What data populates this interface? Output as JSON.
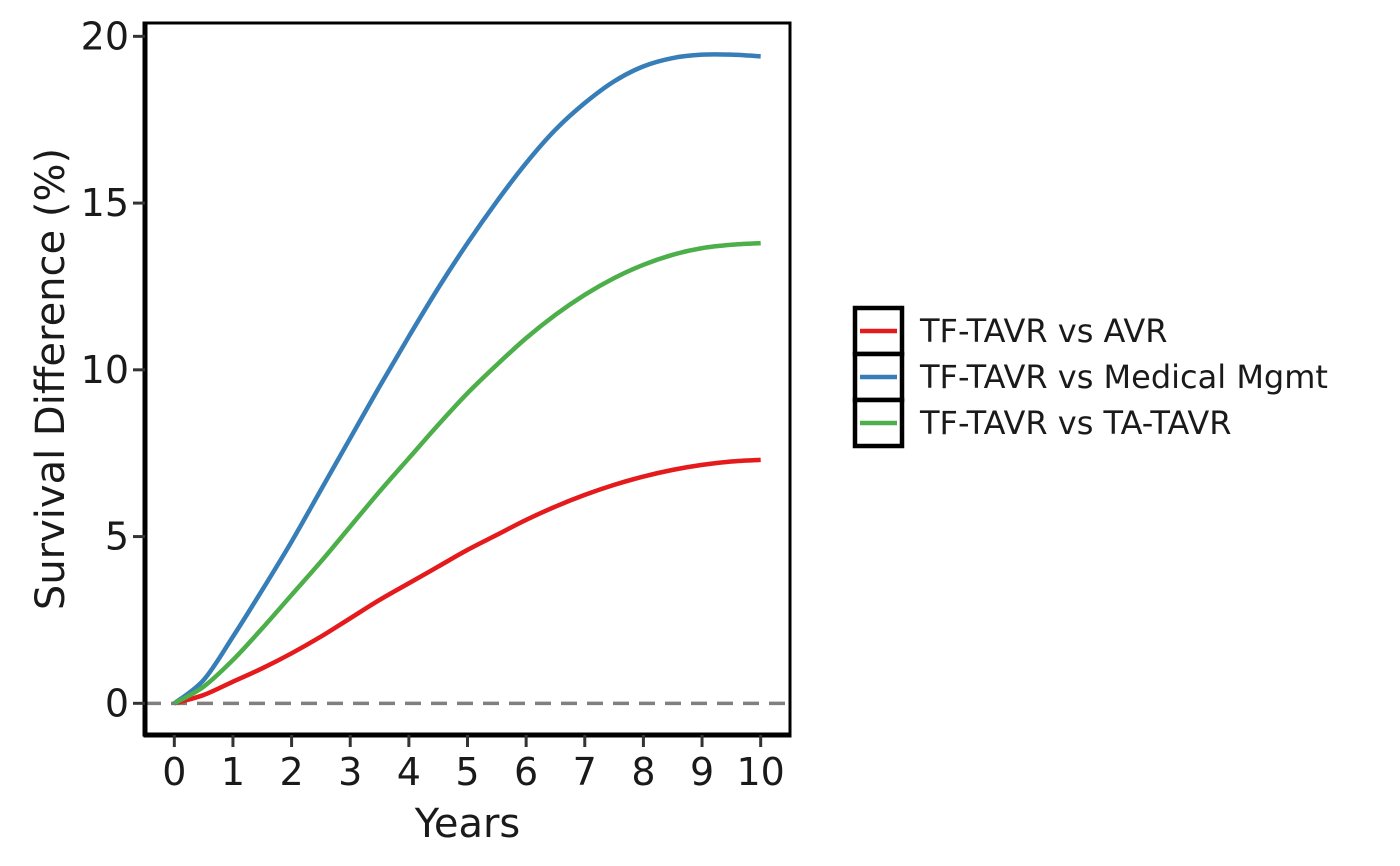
{
  "chart_data": {
    "type": "line",
    "xlabel": "Years",
    "ylabel": "Survival Difference (%)",
    "xlim": [
      -0.5,
      10.5
    ],
    "ylim": [
      -0.95,
      20.4
    ],
    "x_ticks": [
      0,
      1,
      2,
      3,
      4,
      5,
      6,
      7,
      8,
      9,
      10
    ],
    "y_ticks": [
      0,
      5,
      10,
      15,
      20
    ],
    "grid": false,
    "legend_position": "right",
    "reference_line": {
      "y": 0,
      "style": "dashed",
      "color": "#808080"
    },
    "x": [
      0,
      0.5,
      1,
      1.5,
      2,
      2.5,
      3,
      3.5,
      4,
      4.5,
      5,
      5.5,
      6,
      6.5,
      7,
      7.5,
      8,
      8.5,
      9,
      9.5,
      10
    ],
    "series": [
      {
        "name": "TF-TAVR vs AVR",
        "color": "#e41a1c",
        "values": [
          0,
          0.25,
          0.65,
          1.05,
          1.5,
          2.0,
          2.55,
          3.1,
          3.6,
          4.1,
          4.6,
          5.05,
          5.5,
          5.9,
          6.25,
          6.55,
          6.8,
          7.0,
          7.15,
          7.25,
          7.3
        ]
      },
      {
        "name": "TF-TAVR vs Medical Mgmt",
        "color": "#377eb8",
        "values": [
          0,
          0.7,
          2.0,
          3.4,
          4.85,
          6.4,
          7.95,
          9.5,
          11.0,
          12.45,
          13.8,
          15.05,
          16.2,
          17.2,
          18.0,
          18.65,
          19.1,
          19.35,
          19.45,
          19.45,
          19.4
        ]
      },
      {
        "name": "TF-TAVR vs TA-TAVR",
        "color": "#4daf4a",
        "values": [
          0,
          0.5,
          1.3,
          2.25,
          3.25,
          4.25,
          5.3,
          6.35,
          7.35,
          8.35,
          9.3,
          10.15,
          10.95,
          11.65,
          12.25,
          12.75,
          13.15,
          13.45,
          13.65,
          13.75,
          13.8
        ]
      }
    ]
  }
}
